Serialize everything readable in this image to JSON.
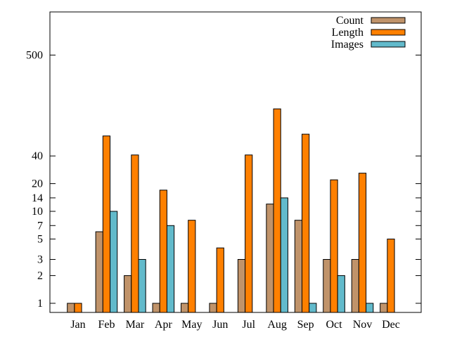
{
  "chart_data": {
    "type": "bar",
    "title": "",
    "xlabel": "",
    "ylabel": "",
    "yscale": "log",
    "ylim": [
      0.8,
      1500
    ],
    "yticks": [
      1,
      2,
      3,
      5,
      7,
      10,
      14,
      20,
      40,
      500
    ],
    "grid": false,
    "legend_position": "top-right",
    "categories": [
      "Jan",
      "Feb",
      "Mar",
      "Apr",
      "May",
      "Jun",
      "Jul",
      "Aug",
      "Sep",
      "Oct",
      "Nov",
      "Dec"
    ],
    "series": [
      {
        "name": "Count",
        "color": "#c0936a",
        "values": [
          1,
          6,
          2,
          1,
          1,
          1,
          3,
          12,
          8,
          3,
          3,
          1
        ]
      },
      {
        "name": "Length",
        "color": "#ff8000",
        "values": [
          1,
          66,
          41,
          17,
          8,
          4,
          41,
          130,
          69,
          22,
          26,
          5
        ]
      },
      {
        "name": "Images",
        "color": "#62bacb",
        "values": [
          null,
          10,
          3,
          7,
          null,
          null,
          null,
          14,
          1,
          2,
          1,
          null
        ]
      }
    ]
  }
}
